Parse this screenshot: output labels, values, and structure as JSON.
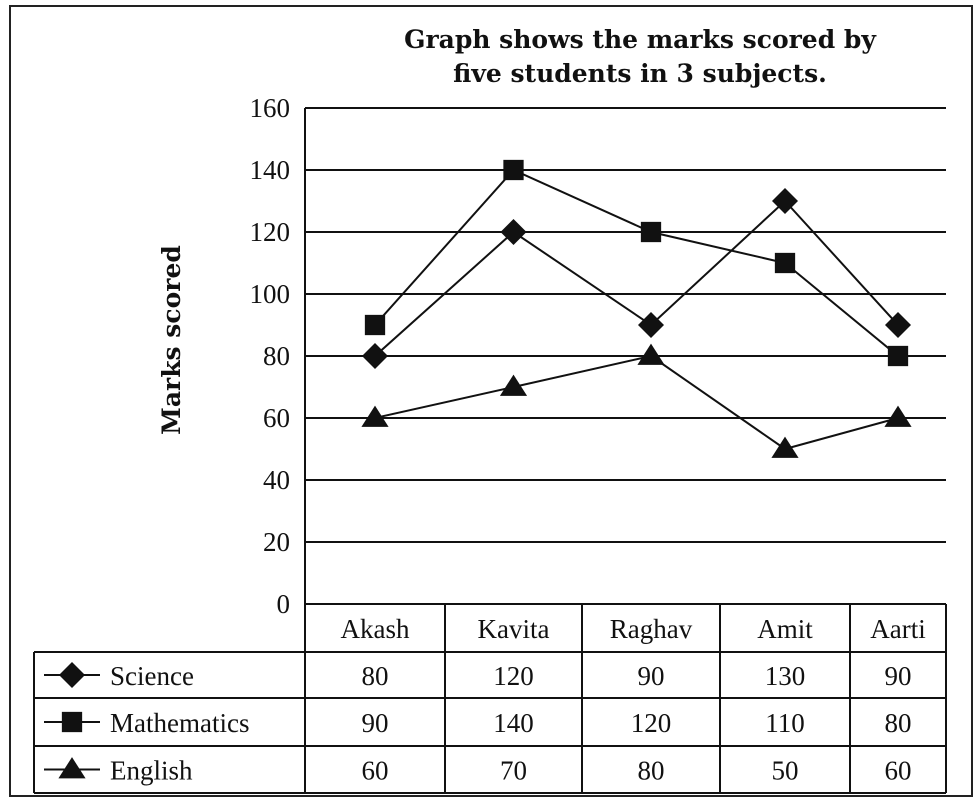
{
  "chart_data": {
    "type": "line",
    "title_lines": [
      "Graph shows the marks scored by",
      "five students in 3 subjects."
    ],
    "ylabel": "Marks scored",
    "xlabel": "",
    "ylim": [
      0,
      160
    ],
    "yticks": [
      0,
      20,
      40,
      60,
      80,
      100,
      120,
      140,
      160
    ],
    "grid": true,
    "categories": [
      "Akash",
      "Kavita",
      "Raghav",
      "Amit",
      "Aarti"
    ],
    "series": [
      {
        "name": "Science",
        "marker": "diamond",
        "values": [
          80,
          120,
          90,
          130,
          90
        ]
      },
      {
        "name": "Mathematics",
        "marker": "square",
        "values": [
          90,
          140,
          120,
          110,
          80
        ]
      },
      {
        "name": "English",
        "marker": "triangle",
        "values": [
          60,
          70,
          80,
          50,
          60
        ]
      }
    ],
    "data_table": true,
    "line_color": "#111111"
  }
}
